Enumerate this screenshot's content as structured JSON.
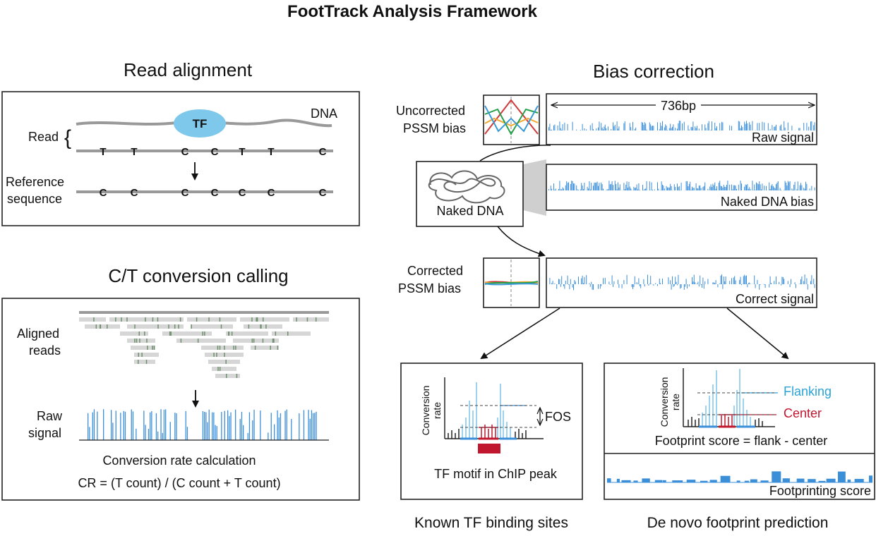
{
  "title": "FootTrack Analysis Framework",
  "read_alignment": {
    "heading": "Read alignment",
    "dna_label": "DNA",
    "tf_label": "TF",
    "read_label": "Read",
    "reference_label_1": "Reference",
    "reference_label_2": "sequence",
    "read_bases": [
      "T",
      "T",
      "C",
      "C",
      "T",
      "T",
      "C"
    ],
    "ref_bases": [
      "C",
      "C",
      "C",
      "C",
      "C",
      "C",
      "C"
    ]
  },
  "conversion_calling": {
    "heading": "C/T conversion calling",
    "aligned_label_1": "Aligned",
    "aligned_label_2": "reads",
    "raw_label_1": "Raw",
    "raw_label_2": "signal",
    "calc_label": "Conversion rate calculation",
    "formula": "CR = (T count) / (C count + T count)"
  },
  "bias_correction": {
    "heading": "Bias correction",
    "uncorrected_1": "Uncorrected",
    "uncorrected_2": "PSSM bias",
    "span_label": "736bp",
    "raw_signal": "Raw signal",
    "naked_dna": "Naked DNA",
    "naked_bias": "Naked DNA bias",
    "corrected_1": "Corrected",
    "corrected_2": "PSSM bias",
    "correct_signal": "Correct signal"
  },
  "known_sites": {
    "y_axis_1": "Conversion",
    "y_axis_2": "rate",
    "fos_label": "FOS",
    "motif_label": "TF motif in ChIP peak",
    "caption": "Known TF binding sites"
  },
  "denovo": {
    "y_axis_1": "Conversion",
    "y_axis_2": "rate",
    "flanking_label": "Flanking",
    "center_label": "Center",
    "score_formula": "Footprint score = flank - center",
    "score_track": "Footprinting score",
    "caption": "De novo footprint prediction"
  },
  "colors": {
    "signal_blue": "#3b8fd9",
    "light_blue": "#7cc4e8",
    "tf_fill": "#7ec8ec",
    "center_red": "#c0172e",
    "flanking_text": "#2ba3d6",
    "read_green": "#9cb89c",
    "gray_strand": "#999999"
  }
}
